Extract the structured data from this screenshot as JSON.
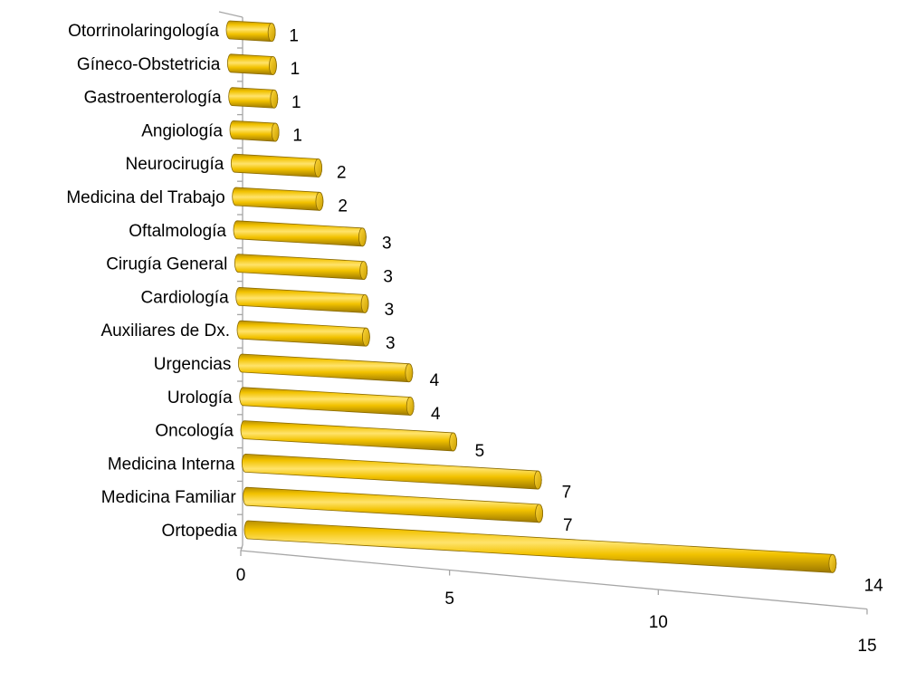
{
  "chart_data": {
    "type": "bar",
    "orientation": "horizontal",
    "style": "3d-cylinder",
    "bar_color": "#F2C200",
    "title": "",
    "xlabel": "",
    "ylabel": "",
    "xlim": [
      0,
      15
    ],
    "x_ticks": [
      "0",
      "5",
      "10",
      "15"
    ],
    "grid": false,
    "legend": "none",
    "categories": [
      "Otorrinolaringología",
      "Gíneco-Obstetricia",
      "Gastroenterología",
      "Angiología",
      "Neurocirugía",
      "Medicina del Trabajo",
      "Oftalmología",
      "Cirugía General",
      "Cardiología",
      "Auxiliares de Dx.",
      "Urgencias",
      "Urología",
      "Oncología",
      "Medicina Interna",
      "Medicina Familiar",
      "Ortopedia"
    ],
    "values": [
      1,
      1,
      1,
      1,
      2,
      2,
      3,
      3,
      3,
      3,
      4,
      4,
      5,
      7,
      7,
      14
    ],
    "value_labels": [
      "1",
      "1",
      "1",
      "1",
      "2",
      "2",
      "3",
      "3",
      "3",
      "3",
      "4",
      "4",
      "5",
      "7",
      "7",
      "14"
    ]
  }
}
